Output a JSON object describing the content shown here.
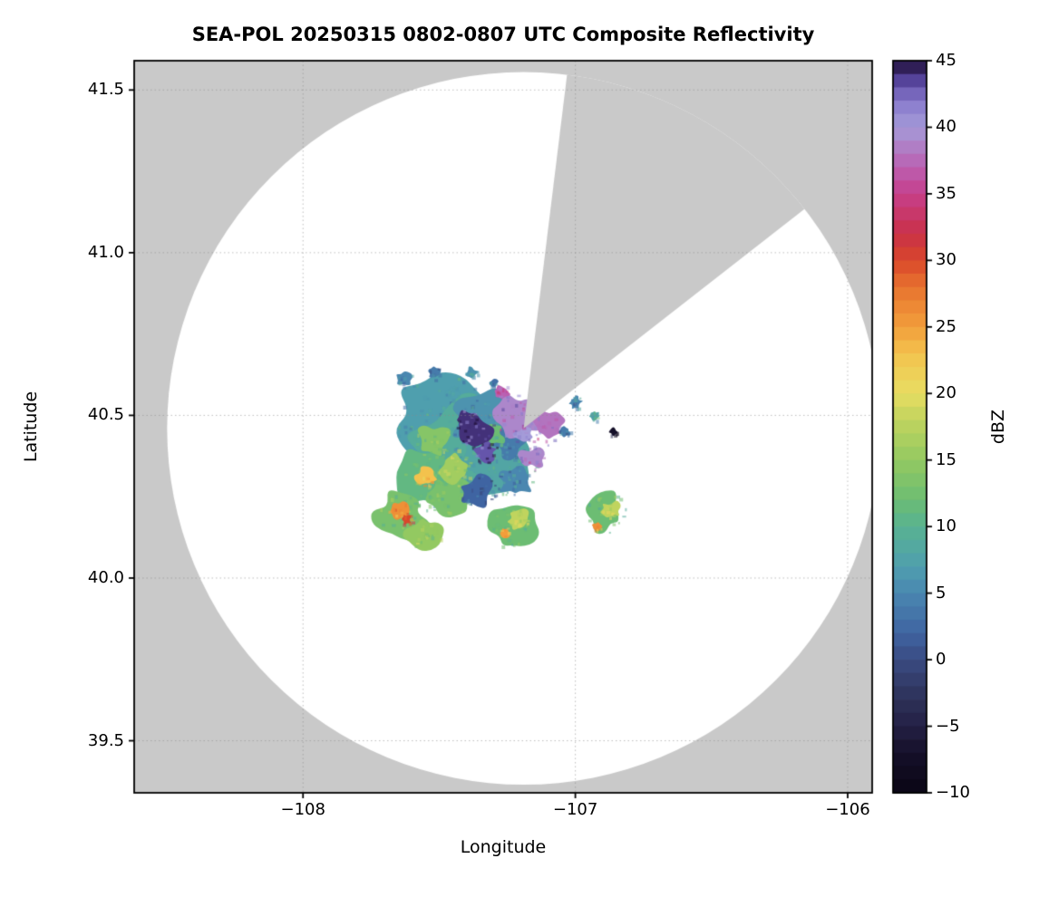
{
  "page": {
    "background": "#ffffff"
  },
  "chart_data": {
    "type": "heatmap",
    "subtype": "radar-composite-reflectivity-ppi",
    "title": "SEA-POL 20250315 0802-0807 UTC Composite Reflectivity",
    "xlabel": "Longitude",
    "ylabel": "Latitude",
    "xlim": [
      -108.62,
      -105.91
    ],
    "ylim": [
      39.34,
      41.59
    ],
    "grid": true,
    "grid_style": "dotted",
    "out_of_range_color": "#c9c9c9",
    "coverage_color": "#ffffff",
    "border_color": "#000000",
    "x_ticks": [
      {
        "value": -108,
        "label": "−108"
      },
      {
        "value": -107,
        "label": "−107"
      },
      {
        "value": -106,
        "label": "−106"
      }
    ],
    "y_ticks": [
      {
        "value": 41.5,
        "label": "41.5"
      },
      {
        "value": 41.0,
        "label": "41.0"
      },
      {
        "value": 40.5,
        "label": "40.5"
      },
      {
        "value": 40.0,
        "label": "40.0"
      },
      {
        "value": 39.5,
        "label": "39.5"
      }
    ],
    "radar": {
      "name": "SEA-POL",
      "center_lon": -107.19,
      "center_lat": 40.46,
      "range_deg_lat": 1.095,
      "blocked_sector_deg": [
        7,
        52
      ]
    },
    "colorbar": {
      "label": "dBZ",
      "vmin": -10,
      "vmax": 45,
      "ticks": [
        {
          "value": 45,
          "label": "45"
        },
        {
          "value": 40,
          "label": "40"
        },
        {
          "value": 35,
          "label": "35"
        },
        {
          "value": 30,
          "label": "30"
        },
        {
          "value": 25,
          "label": "25"
        },
        {
          "value": 20,
          "label": "20"
        },
        {
          "value": 15,
          "label": "15"
        },
        {
          "value": 10,
          "label": "10"
        },
        {
          "value": 5,
          "label": "5"
        },
        {
          "value": 0,
          "label": "0"
        },
        {
          "value": -5,
          "label": "−5"
        },
        {
          "value": -10,
          "label": "−10"
        }
      ],
      "stops": [
        [
          -10,
          "#0a0514"
        ],
        [
          -7,
          "#151029"
        ],
        [
          -5,
          "#232045"
        ],
        [
          -3,
          "#2d3158"
        ],
        [
          0,
          "#3a4b82"
        ],
        [
          2,
          "#3f64a2"
        ],
        [
          5,
          "#4a87b0"
        ],
        [
          7,
          "#4f9fae"
        ],
        [
          10,
          "#58b291"
        ],
        [
          12,
          "#6cbd73"
        ],
        [
          15,
          "#93c961"
        ],
        [
          18,
          "#c0d45e"
        ],
        [
          20,
          "#e8dd62"
        ],
        [
          23,
          "#f3c24d"
        ],
        [
          25,
          "#f29e3b"
        ],
        [
          28,
          "#e7732f"
        ],
        [
          30,
          "#d9472b"
        ],
        [
          32,
          "#c93048"
        ],
        [
          35,
          "#c63f8b"
        ],
        [
          37,
          "#bb60b2"
        ],
        [
          40,
          "#a49bd8"
        ],
        [
          42,
          "#8678cc"
        ],
        [
          43.5,
          "#55439a"
        ],
        [
          45,
          "#1e0d36"
        ]
      ]
    },
    "echoes": [
      {
        "lon": -107.5,
        "lat": 40.49,
        "r": 0.13,
        "dbz": 7
      },
      {
        "lon": -107.4,
        "lat": 40.4,
        "r": 0.15,
        "dbz": 9
      },
      {
        "lon": -107.28,
        "lat": 40.37,
        "r": 0.11,
        "dbz": 8
      },
      {
        "lon": -107.56,
        "lat": 40.31,
        "r": 0.085,
        "dbz": 11
      },
      {
        "lon": -107.47,
        "lat": 40.25,
        "r": 0.06,
        "dbz": 13
      },
      {
        "lon": -107.35,
        "lat": 40.5,
        "r": 0.09,
        "dbz": 6
      },
      {
        "lon": -107.22,
        "lat": 40.3,
        "r": 0.055,
        "dbz": 5
      },
      {
        "lon": -107.36,
        "lat": 40.27,
        "r": 0.05,
        "dbz": 2
      },
      {
        "lon": -107.24,
        "lat": 40.42,
        "r": 0.05,
        "dbz": 4
      },
      {
        "lon": -107.44,
        "lat": 40.34,
        "r": 0.055,
        "dbz": 16
      },
      {
        "lon": -107.52,
        "lat": 40.42,
        "r": 0.05,
        "dbz": 14
      },
      {
        "lon": -107.31,
        "lat": 40.44,
        "r": 0.04,
        "dbz": 12
      },
      {
        "lon": -107.21,
        "lat": 40.5,
        "r": 0.065,
        "dbz": 39
      },
      {
        "lon": -107.1,
        "lat": 40.47,
        "r": 0.055,
        "dbz": 38
      },
      {
        "lon": -107.16,
        "lat": 40.37,
        "r": 0.035,
        "dbz": 39
      },
      {
        "lon": -107.27,
        "lat": 40.57,
        "r": 0.022,
        "dbz": 37
      },
      {
        "lon": -107.19,
        "lat": 40.44,
        "r": 0.03,
        "dbz": 40
      },
      {
        "lon": -107.37,
        "lat": 40.45,
        "r": 0.055,
        "dbz": 44
      },
      {
        "lon": -107.33,
        "lat": 40.39,
        "r": 0.032,
        "dbz": 43
      },
      {
        "lon": -107.4,
        "lat": 40.49,
        "r": 0.025,
        "dbz": 44
      },
      {
        "lon": -107.64,
        "lat": 40.19,
        "r": 0.075,
        "dbz": 13
      },
      {
        "lon": -107.56,
        "lat": 40.14,
        "r": 0.05,
        "dbz": 15
      },
      {
        "lon": -107.65,
        "lat": 40.21,
        "r": 0.028,
        "dbz": 26
      },
      {
        "lon": -107.62,
        "lat": 40.18,
        "r": 0.015,
        "dbz": 30
      },
      {
        "lon": -107.55,
        "lat": 40.31,
        "r": 0.03,
        "dbz": 23
      },
      {
        "lon": -107.23,
        "lat": 40.16,
        "r": 0.065,
        "dbz": 12
      },
      {
        "lon": -107.21,
        "lat": 40.18,
        "r": 0.032,
        "dbz": 18
      },
      {
        "lon": -107.26,
        "lat": 40.14,
        "r": 0.016,
        "dbz": 25
      },
      {
        "lon": -106.89,
        "lat": 40.2,
        "r": 0.06,
        "dbz": 12
      },
      {
        "lon": -106.87,
        "lat": 40.21,
        "r": 0.028,
        "dbz": 18
      },
      {
        "lon": -106.92,
        "lat": 40.16,
        "r": 0.013,
        "dbz": 26
      },
      {
        "lon": -107.63,
        "lat": 40.61,
        "r": 0.025,
        "dbz": 5
      },
      {
        "lon": -107.52,
        "lat": 40.63,
        "r": 0.018,
        "dbz": 4
      },
      {
        "lon": -107.38,
        "lat": 40.63,
        "r": 0.02,
        "dbz": 6
      },
      {
        "lon": -107.3,
        "lat": 40.6,
        "r": 0.015,
        "dbz": 3
      },
      {
        "lon": -107.45,
        "lat": 40.57,
        "r": 0.02,
        "dbz": 7
      },
      {
        "lon": -107.0,
        "lat": 40.54,
        "r": 0.02,
        "dbz": 5
      },
      {
        "lon": -106.93,
        "lat": 40.5,
        "r": 0.014,
        "dbz": 8
      },
      {
        "lon": -107.04,
        "lat": 40.45,
        "r": 0.016,
        "dbz": 4
      },
      {
        "lon": -106.86,
        "lat": 40.45,
        "r": 0.012,
        "dbz": -7
      }
    ]
  }
}
